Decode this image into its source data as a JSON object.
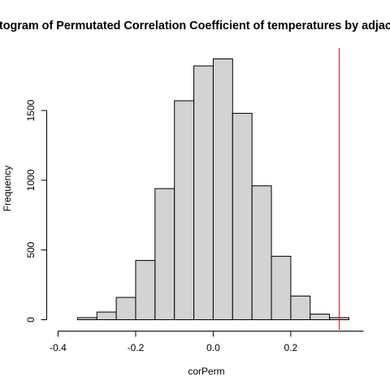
{
  "chart_data": {
    "type": "bar",
    "title": "Histogram of Permutated Correlation Coefficient of temperatures by adjacent",
    "xlabel": "corPerm",
    "ylabel": "Frequency",
    "bin_edges": [
      -0.35,
      -0.3,
      -0.25,
      -0.2,
      -0.15,
      -0.1,
      -0.05,
      0.0,
      0.05,
      0.1,
      0.15,
      0.2,
      0.25,
      0.3,
      0.35
    ],
    "values": [
      15,
      55,
      160,
      425,
      940,
      1570,
      1820,
      1870,
      1480,
      960,
      455,
      170,
      40,
      15
    ],
    "xlim": [
      -0.4,
      0.35
    ],
    "ylim": [
      0,
      1870
    ],
    "xticks": [
      -0.4,
      -0.2,
      0.0,
      0.2
    ],
    "xtick_labels": [
      "-0.4",
      "-0.2",
      "0.0",
      "0.2"
    ],
    "yticks": [
      0,
      500,
      1000,
      1500
    ],
    "ytick_labels": [
      "0",
      "500",
      "1000",
      "1500"
    ],
    "reference_line_x": 0.325,
    "colors": {
      "bar_fill": "#d3d3d3",
      "bar_stroke": "#000000",
      "reference_line": "#ff0000"
    },
    "grid": false
  }
}
